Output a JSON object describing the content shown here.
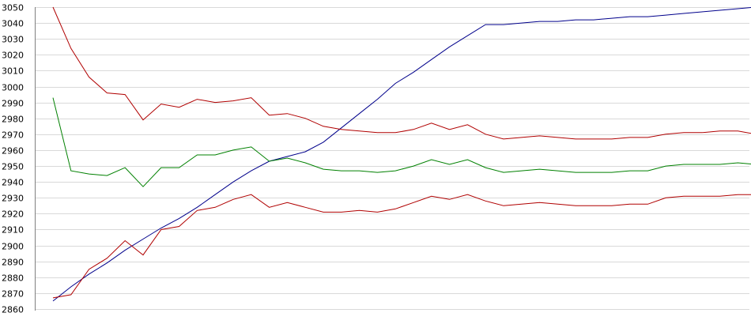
{
  "chart_data": {
    "type": "line",
    "title": "",
    "xlabel": "",
    "ylabel": "",
    "ylim": [
      2860,
      3050
    ],
    "y_ticks": [
      "3050",
      "3040",
      "3030",
      "3020",
      "3010",
      "3000",
      "2990",
      "2980",
      "2970",
      "2960",
      "2950",
      "2940",
      "2930",
      "2920",
      "2910",
      "2900",
      "2890",
      "2880",
      "2870",
      "2860"
    ],
    "grid": true,
    "x": [
      1,
      2,
      3,
      4,
      5,
      6,
      7,
      8,
      9,
      10,
      11,
      12,
      13,
      14,
      15,
      16,
      17,
      18,
      19,
      20,
      21,
      22,
      23,
      24,
      25,
      26,
      27,
      28,
      29,
      30,
      31,
      32,
      33,
      34,
      35,
      36,
      37,
      38,
      39,
      40
    ],
    "series": [
      {
        "color": "#00008b",
        "values": [
          2865,
          2874,
          2882,
          2889,
          2897,
          2904,
          2911,
          2917,
          2924,
          2932,
          2940,
          2947,
          2953,
          2956,
          2959,
          2965,
          2974,
          2983,
          2992,
          3002,
          3009,
          3017,
          3025,
          3032,
          3039,
          3039,
          3040,
          3041,
          3041,
          3042,
          3042,
          3043,
          3044,
          3044,
          3045,
          3046,
          3047,
          3048,
          3049,
          3050
        ]
      },
      {
        "color": "#b00000",
        "values": [
          3050,
          3024,
          3006,
          2996,
          2995,
          2979,
          2989,
          2987,
          2992,
          2990,
          2991,
          2993,
          2982,
          2983,
          2980,
          2975,
          2973,
          2972,
          2971,
          2971,
          2973,
          2977,
          2973,
          2976,
          2970,
          2967,
          2968,
          2969,
          2968,
          2967,
          2967,
          2967,
          2968,
          2968,
          2970,
          2971,
          2971,
          2972,
          2972,
          2970
        ]
      },
      {
        "color": "#008000",
        "values": [
          2993,
          2947,
          2945,
          2944,
          2949,
          2937,
          2949,
          2949,
          2957,
          2957,
          2960,
          2962,
          2953,
          2955,
          2952,
          2948,
          2947,
          2947,
          2946,
          2947,
          2950,
          2954,
          2951,
          2954,
          2949,
          2946,
          2947,
          2948,
          2947,
          2946,
          2946,
          2946,
          2947,
          2947,
          2950,
          2951,
          2951,
          2951,
          2952,
          2951
        ]
      },
      {
        "color": "#b00000",
        "values": [
          2867,
          2869,
          2885,
          2892,
          2903,
          2894,
          2910,
          2912,
          2922,
          2924,
          2929,
          2932,
          2924,
          2927,
          2924,
          2921,
          2921,
          2922,
          2921,
          2923,
          2927,
          2931,
          2929,
          2932,
          2928,
          2925,
          2926,
          2927,
          2926,
          2925,
          2925,
          2925,
          2926,
          2926,
          2930,
          2931,
          2931,
          2931,
          2932,
          2932
        ]
      }
    ]
  }
}
